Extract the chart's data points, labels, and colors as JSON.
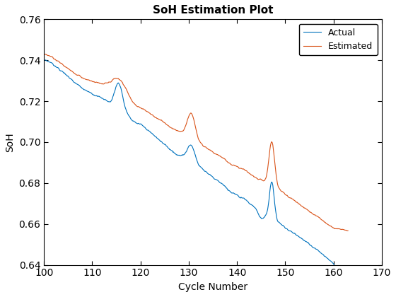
{
  "title": "SoH Estimation Plot",
  "xlabel": "Cycle Number",
  "ylabel": "SoH",
  "xlim": [
    100,
    170
  ],
  "ylim": [
    0.64,
    0.76
  ],
  "xticks": [
    100,
    110,
    120,
    130,
    140,
    150,
    160,
    170
  ],
  "yticks": [
    0.64,
    0.66,
    0.68,
    0.7,
    0.72,
    0.74,
    0.76
  ],
  "actual_color": "#0072BD",
  "estimated_color": "#D95319",
  "actual_label": "Actual",
  "estimated_label": "Estimated",
  "linewidth": 0.8,
  "title_fontsize": 11,
  "label_fontsize": 10,
  "tick_fontsize": 10,
  "legend_fontsize": 9
}
